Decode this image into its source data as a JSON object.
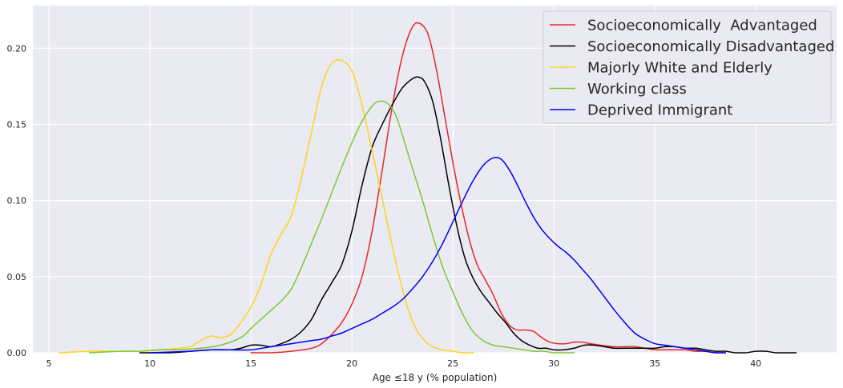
{
  "chart_data": {
    "type": "line",
    "title": "",
    "xlabel": "Age ≤18 y (% population)",
    "ylabel": "",
    "xlim": [
      4.2,
      44.0
    ],
    "ylim": [
      0.0,
      0.228
    ],
    "x_ticks": [
      5,
      10,
      15,
      20,
      25,
      30,
      35,
      40
    ],
    "x_tick_labels": [
      "5",
      "10",
      "15",
      "20",
      "25",
      "30",
      "35",
      "40"
    ],
    "y_ticks": [
      0.0,
      0.05,
      0.1,
      0.15,
      0.2
    ],
    "y_tick_labels": [
      "0.00",
      "0.05",
      "0.10",
      "0.15",
      "0.20"
    ],
    "grid": true,
    "legend_position": "top-right",
    "background_color": "#eaeaf2",
    "grid_color": "#ffffff",
    "series": [
      {
        "name": "Socioeconomically  Advantaged",
        "color": "#e8262b",
        "x": [
          15,
          16,
          17,
          18,
          18.5,
          19,
          19.5,
          20,
          20.5,
          21,
          21.5,
          22,
          22.5,
          23,
          23.4,
          23.8,
          24.2,
          24.6,
          25,
          25.4,
          25.8,
          26.2,
          26.6,
          27,
          27.4,
          27.8,
          28.2,
          28.6,
          29,
          29.4,
          29.8,
          30.2,
          30.6,
          31,
          31.4,
          31.8,
          32.3,
          33,
          33.5,
          34,
          34.5,
          35,
          35.5,
          36,
          36.5,
          37,
          37.5,
          38,
          38.5
        ],
        "y": [
          0.0,
          0.0,
          0.001,
          0.003,
          0.006,
          0.012,
          0.02,
          0.032,
          0.05,
          0.08,
          0.12,
          0.162,
          0.195,
          0.214,
          0.216,
          0.208,
          0.185,
          0.155,
          0.125,
          0.098,
          0.075,
          0.058,
          0.048,
          0.038,
          0.026,
          0.018,
          0.015,
          0.015,
          0.014,
          0.01,
          0.007,
          0.006,
          0.006,
          0.007,
          0.007,
          0.006,
          0.005,
          0.004,
          0.004,
          0.004,
          0.003,
          0.002,
          0.002,
          0.002,
          0.002,
          0.001,
          0.001,
          0.0,
          0.0
        ]
      },
      {
        "name": "Socioeconomically Disadvantaged",
        "color": "#000000",
        "x": [
          9.5,
          11,
          12,
          13,
          14,
          14.5,
          15,
          15.5,
          16,
          16.5,
          17,
          17.5,
          18,
          18.5,
          19,
          19.5,
          20,
          20.5,
          21,
          21.5,
          22,
          22.5,
          23,
          23.3,
          23.6,
          24,
          24.4,
          24.8,
          25.2,
          25.6,
          26,
          26.4,
          26.8,
          27.2,
          27.6,
          28,
          28.4,
          28.8,
          29.2,
          29.6,
          30,
          30.5,
          31,
          31.5,
          32,
          32.5,
          33,
          33.5,
          34,
          34.5,
          35,
          35.5,
          36,
          36.5,
          37,
          37.5,
          38,
          38.5,
          39,
          39.5,
          40,
          40.5,
          41,
          41.5,
          42
        ],
        "y": [
          0.0,
          0.0,
          0.001,
          0.002,
          0.002,
          0.003,
          0.005,
          0.005,
          0.004,
          0.006,
          0.009,
          0.014,
          0.022,
          0.035,
          0.046,
          0.058,
          0.08,
          0.11,
          0.135,
          0.15,
          0.163,
          0.174,
          0.18,
          0.181,
          0.178,
          0.165,
          0.14,
          0.11,
          0.083,
          0.062,
          0.049,
          0.04,
          0.033,
          0.026,
          0.02,
          0.013,
          0.008,
          0.005,
          0.003,
          0.003,
          0.002,
          0.002,
          0.003,
          0.005,
          0.005,
          0.004,
          0.003,
          0.003,
          0.003,
          0.003,
          0.003,
          0.004,
          0.004,
          0.003,
          0.003,
          0.002,
          0.001,
          0.001,
          0.0,
          0.0,
          0.001,
          0.001,
          0.0,
          0.0,
          0.0
        ]
      },
      {
        "name": "Majorly White and Elderly",
        "color": "#ffd21a",
        "x": [
          5.5,
          7,
          8.5,
          9.5,
          10.5,
          11.5,
          12,
          12.5,
          13,
          13.5,
          14,
          14.5,
          15,
          15.5,
          16,
          16.5,
          17,
          17.5,
          18,
          18.5,
          19,
          19.5,
          20,
          20.4,
          20.8,
          21.2,
          21.6,
          22,
          22.4,
          22.8,
          23.2,
          23.6,
          24,
          24.5,
          25,
          25.5,
          26
        ],
        "y": [
          0.0,
          0.001,
          0.001,
          0.001,
          0.002,
          0.003,
          0.004,
          0.008,
          0.011,
          0.01,
          0.012,
          0.02,
          0.03,
          0.045,
          0.065,
          0.078,
          0.09,
          0.115,
          0.145,
          0.175,
          0.19,
          0.192,
          0.185,
          0.168,
          0.145,
          0.12,
          0.095,
          0.07,
          0.047,
          0.028,
          0.015,
          0.008,
          0.004,
          0.002,
          0.001,
          0.0,
          0.0
        ]
      },
      {
        "name": "Working class",
        "color": "#7dc832",
        "x": [
          7,
          8.5,
          9.5,
          10.5,
          11.5,
          12.5,
          13.5,
          14.5,
          15,
          15.5,
          16,
          16.5,
          17,
          17.5,
          18,
          18.5,
          19,
          19.5,
          20,
          20.5,
          21,
          21.3,
          21.6,
          21.9,
          22.2,
          22.5,
          23,
          23.5,
          24,
          24.5,
          25,
          25.5,
          26,
          26.5,
          27,
          27.5,
          28,
          28.5,
          29,
          29.5,
          30,
          30.5,
          31
        ],
        "y": [
          0.0,
          0.001,
          0.001,
          0.002,
          0.002,
          0.003,
          0.005,
          0.01,
          0.016,
          0.022,
          0.028,
          0.034,
          0.042,
          0.056,
          0.072,
          0.088,
          0.105,
          0.122,
          0.138,
          0.152,
          0.162,
          0.165,
          0.165,
          0.162,
          0.155,
          0.143,
          0.121,
          0.1,
          0.077,
          0.056,
          0.04,
          0.025,
          0.014,
          0.008,
          0.005,
          0.004,
          0.003,
          0.002,
          0.001,
          0.001,
          0.0,
          0.0,
          0.0
        ]
      },
      {
        "name": "Deprived Immigrant",
        "color": "#0000f0",
        "x": [
          10,
          12,
          13,
          14,
          15,
          16,
          17,
          18,
          18.5,
          19,
          19.5,
          20,
          20.5,
          21,
          21.5,
          22,
          22.5,
          23,
          23.5,
          24,
          24.5,
          25,
          25.5,
          26,
          26.5,
          27,
          27.4,
          27.8,
          28.2,
          28.6,
          29,
          29.4,
          29.8,
          30.2,
          30.6,
          31,
          31.4,
          31.8,
          32.2,
          32.6,
          33,
          33.5,
          34,
          34.5,
          35,
          35.5,
          36,
          36.5,
          37,
          37.5,
          38,
          38.5
        ],
        "y": [
          0.0,
          0.001,
          0.002,
          0.002,
          0.002,
          0.004,
          0.006,
          0.008,
          0.009,
          0.011,
          0.013,
          0.016,
          0.019,
          0.022,
          0.026,
          0.03,
          0.035,
          0.042,
          0.05,
          0.06,
          0.072,
          0.086,
          0.1,
          0.113,
          0.123,
          0.128,
          0.127,
          0.12,
          0.11,
          0.099,
          0.089,
          0.081,
          0.075,
          0.07,
          0.066,
          0.061,
          0.055,
          0.049,
          0.042,
          0.035,
          0.028,
          0.02,
          0.013,
          0.009,
          0.006,
          0.005,
          0.004,
          0.003,
          0.002,
          0.001,
          0.0,
          0.0
        ]
      }
    ]
  }
}
